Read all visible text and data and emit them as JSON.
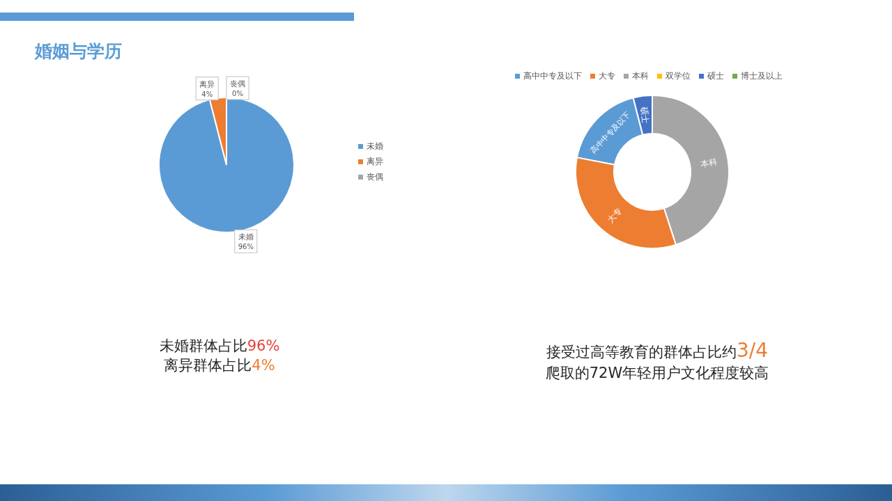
{
  "chart_data": [
    {
      "type": "pie",
      "title": "婚姻与学历",
      "categories": [
        "未婚",
        "离异",
        "丧偶"
      ],
      "values": [
        96,
        4,
        0
      ],
      "colors": [
        "#5b9bd5",
        "#ed7d31",
        "#a5a5a5"
      ],
      "value_labels": [
        "96%",
        "4%",
        "0%"
      ],
      "legend": "right",
      "annotations": [
        "未婚群体占比96%",
        "离异群体占比4%"
      ]
    },
    {
      "type": "donut",
      "categories": [
        "高中中专及以下",
        "大专",
        "本科",
        "双学位",
        "硕士",
        "博士及以上"
      ],
      "values": [
        18,
        33,
        45,
        0,
        4,
        0
      ],
      "colors": [
        "#5b9bd5",
        "#ed7d31",
        "#a5a5a5",
        "#ffc000",
        "#4472c4",
        "#70ad47"
      ],
      "legend": "top",
      "annotations": [
        "接受过高等教育的群体占比约3/4",
        "爬取的72W年轻用户文化程度较高"
      ]
    }
  ]
}
